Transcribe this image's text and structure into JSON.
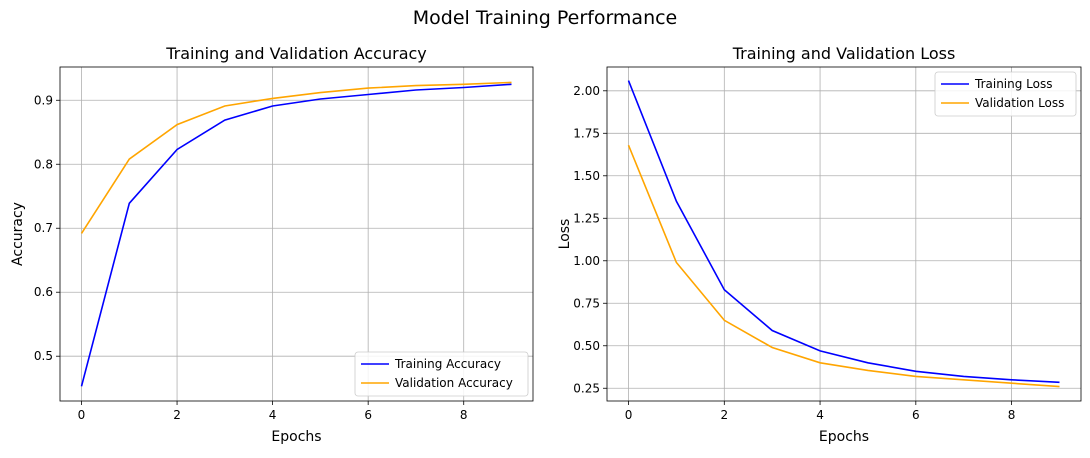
{
  "suptitle": "Model Training Performance",
  "chart_data": [
    {
      "type": "line",
      "title": "Training and Validation Accuracy",
      "xlabel": "Epochs",
      "ylabel": "Accuracy",
      "x": [
        0,
        1,
        2,
        3,
        4,
        5,
        6,
        7,
        8,
        9
      ],
      "xlim": [
        -0.45,
        9.45
      ],
      "ylim": [
        0.43,
        0.952
      ],
      "xticks": [
        0,
        2,
        4,
        6,
        8
      ],
      "yticks": [
        0.5,
        0.6,
        0.7,
        0.8,
        0.9
      ],
      "ytick_labels": [
        "0.5",
        "0.6",
        "0.7",
        "0.8",
        "0.9"
      ],
      "grid": true,
      "legend": "lower-right",
      "series": [
        {
          "name": "Training Accuracy",
          "color": "#0000ff",
          "values": [
            0.453,
            0.739,
            0.823,
            0.869,
            0.891,
            0.902,
            0.909,
            0.916,
            0.92,
            0.925
          ]
        },
        {
          "name": "Validation Accuracy",
          "color": "#ffa500",
          "values": [
            0.692,
            0.808,
            0.862,
            0.891,
            0.903,
            0.912,
            0.919,
            0.923,
            0.925,
            0.928
          ]
        }
      ]
    },
    {
      "type": "line",
      "title": "Training and Validation Loss",
      "xlabel": "Epochs",
      "ylabel": "Loss",
      "x": [
        0,
        1,
        2,
        3,
        4,
        5,
        6,
        7,
        8,
        9
      ],
      "xlim": [
        -0.45,
        9.45
      ],
      "ylim": [
        0.175,
        2.14
      ],
      "xticks": [
        0,
        2,
        4,
        6,
        8
      ],
      "yticks": [
        0.25,
        0.5,
        0.75,
        1.0,
        1.25,
        1.5,
        1.75,
        2.0
      ],
      "ytick_labels": [
        "0.25",
        "0.50",
        "0.75",
        "1.00",
        "1.25",
        "1.50",
        "1.75",
        "2.00"
      ],
      "grid": true,
      "legend": "upper-right",
      "series": [
        {
          "name": "Training Loss",
          "color": "#0000ff",
          "values": [
            2.06,
            1.35,
            0.83,
            0.59,
            0.47,
            0.4,
            0.35,
            0.32,
            0.3,
            0.285
          ]
        },
        {
          "name": "Validation Loss",
          "color": "#ffa500",
          "values": [
            1.68,
            0.99,
            0.65,
            0.49,
            0.4,
            0.355,
            0.32,
            0.3,
            0.28,
            0.26
          ]
        }
      ]
    }
  ]
}
